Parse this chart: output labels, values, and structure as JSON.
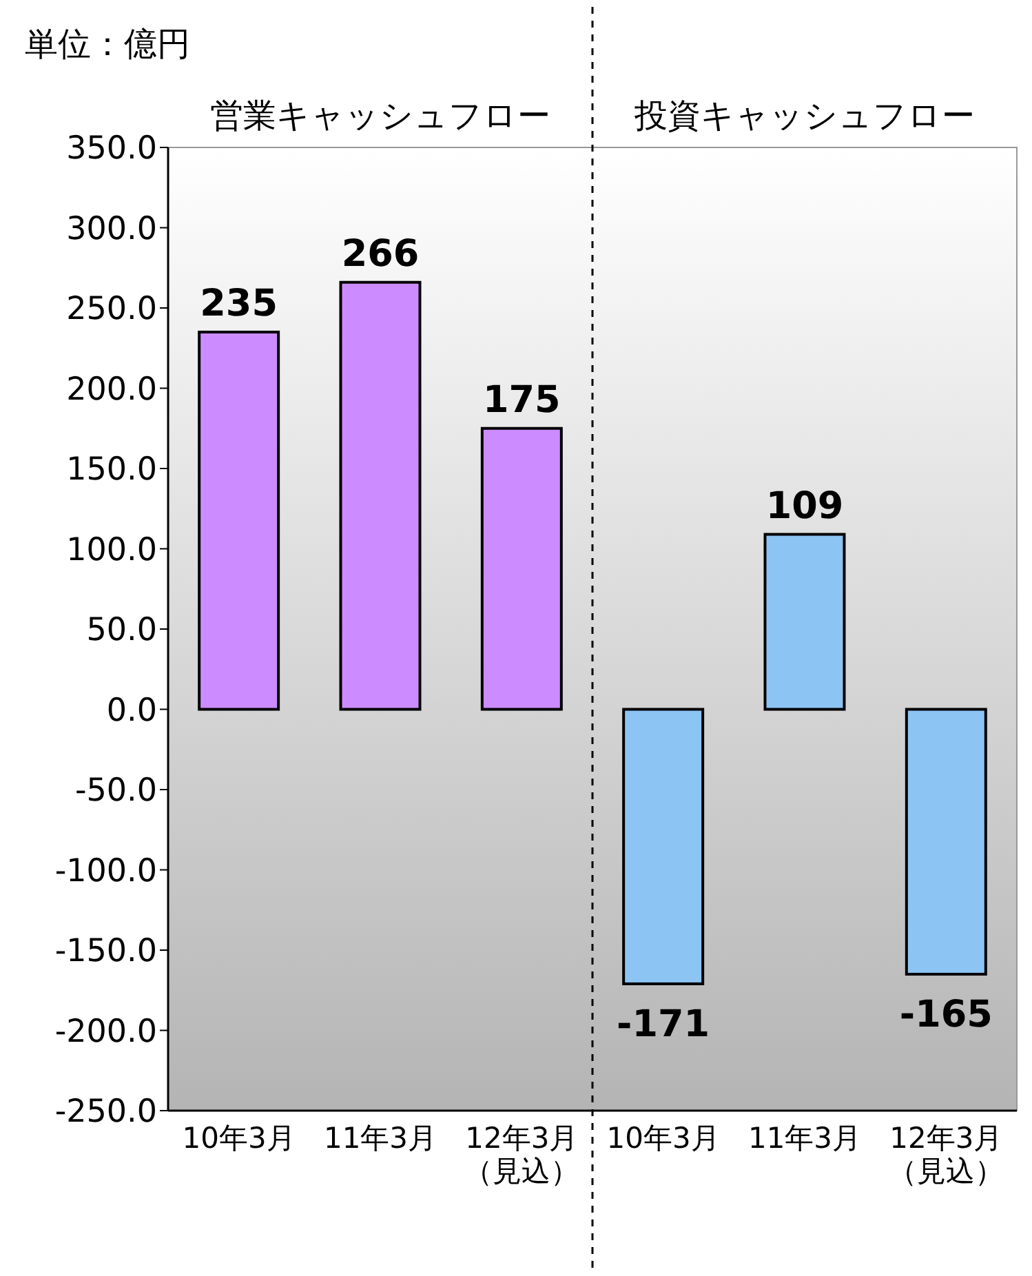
{
  "chart_data": {
    "type": "bar",
    "categories": [
      "10年3月",
      "11年3月",
      "12年3月（見込）",
      "10年3月",
      "11年3月",
      "12年3月（見込）"
    ],
    "values": [
      235,
      266,
      175,
      -171,
      109,
      -165
    ],
    "colors": [
      "#cc8cff",
      "#cc8cff",
      "#cc8cff",
      "#8cc4f4",
      "#8cc4f4",
      "#8cc4f4"
    ],
    "data_labels": true,
    "ylim": [
      -250,
      350
    ],
    "yticks": [
      {
        "value": 350,
        "label": "350.0"
      },
      {
        "value": 300,
        "label": "300.0"
      },
      {
        "value": 250,
        "label": "250.0"
      },
      {
        "value": 200,
        "label": "200.0"
      },
      {
        "value": 150,
        "label": "150.0"
      },
      {
        "value": 100,
        "label": "100.0"
      },
      {
        "value": 50,
        "label": "50.0"
      },
      {
        "value": 0,
        "label": "0.0"
      },
      {
        "value": -50,
        "label": "-50.0"
      },
      {
        "value": -100,
        "label": "-100.0"
      },
      {
        "value": -150,
        "label": "-150.0"
      },
      {
        "value": -200,
        "label": "-200.0"
      },
      {
        "value": -250,
        "label": "-250.0"
      }
    ],
    "annotations": [
      "単位：億円",
      "営業キャッシュフロー",
      "投資キャッシュフロー"
    ]
  }
}
